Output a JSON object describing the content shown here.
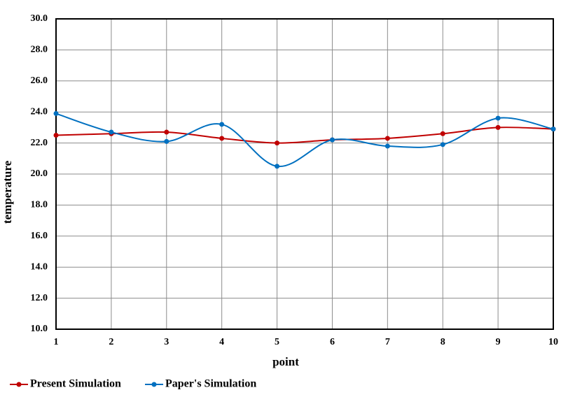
{
  "chart_data": {
    "type": "line",
    "x_label": "point",
    "y_label": "temperature",
    "x": [
      1,
      2,
      3,
      4,
      5,
      6,
      7,
      8,
      9,
      10
    ],
    "series": [
      {
        "name": "Present Simulation",
        "color": "#c00000",
        "values": [
          22.5,
          22.6,
          22.7,
          22.3,
          22.0,
          22.2,
          22.3,
          22.6,
          23.0,
          22.9
        ]
      },
      {
        "name": "Paper's Simulation",
        "color": "#0070c0",
        "values": [
          23.9,
          22.7,
          22.1,
          23.2,
          20.5,
          22.2,
          21.8,
          21.9,
          23.6,
          22.9
        ]
      }
    ],
    "xlim": [
      1,
      10
    ],
    "xticks": [
      1,
      2,
      3,
      4,
      5,
      6,
      7,
      8,
      9,
      10
    ],
    "ylim": [
      10,
      30
    ],
    "yticks": [
      {
        "value": 10,
        "label": "10.0"
      },
      {
        "value": 12,
        "label": "12.0"
      },
      {
        "value": 14,
        "label": "14.0"
      },
      {
        "value": 16,
        "label": "16.0"
      },
      {
        "value": 18,
        "label": "18.0"
      },
      {
        "value": 20,
        "label": "20.0"
      },
      {
        "value": 22,
        "label": "22.0"
      },
      {
        "value": 24,
        "label": "24.0"
      },
      {
        "value": 26,
        "label": "26.0"
      },
      {
        "value": 28,
        "label": "28.0"
      },
      {
        "value": 30,
        "label": "30.0"
      }
    ],
    "grid": true,
    "legend": "bottom-left",
    "smooth": true
  }
}
